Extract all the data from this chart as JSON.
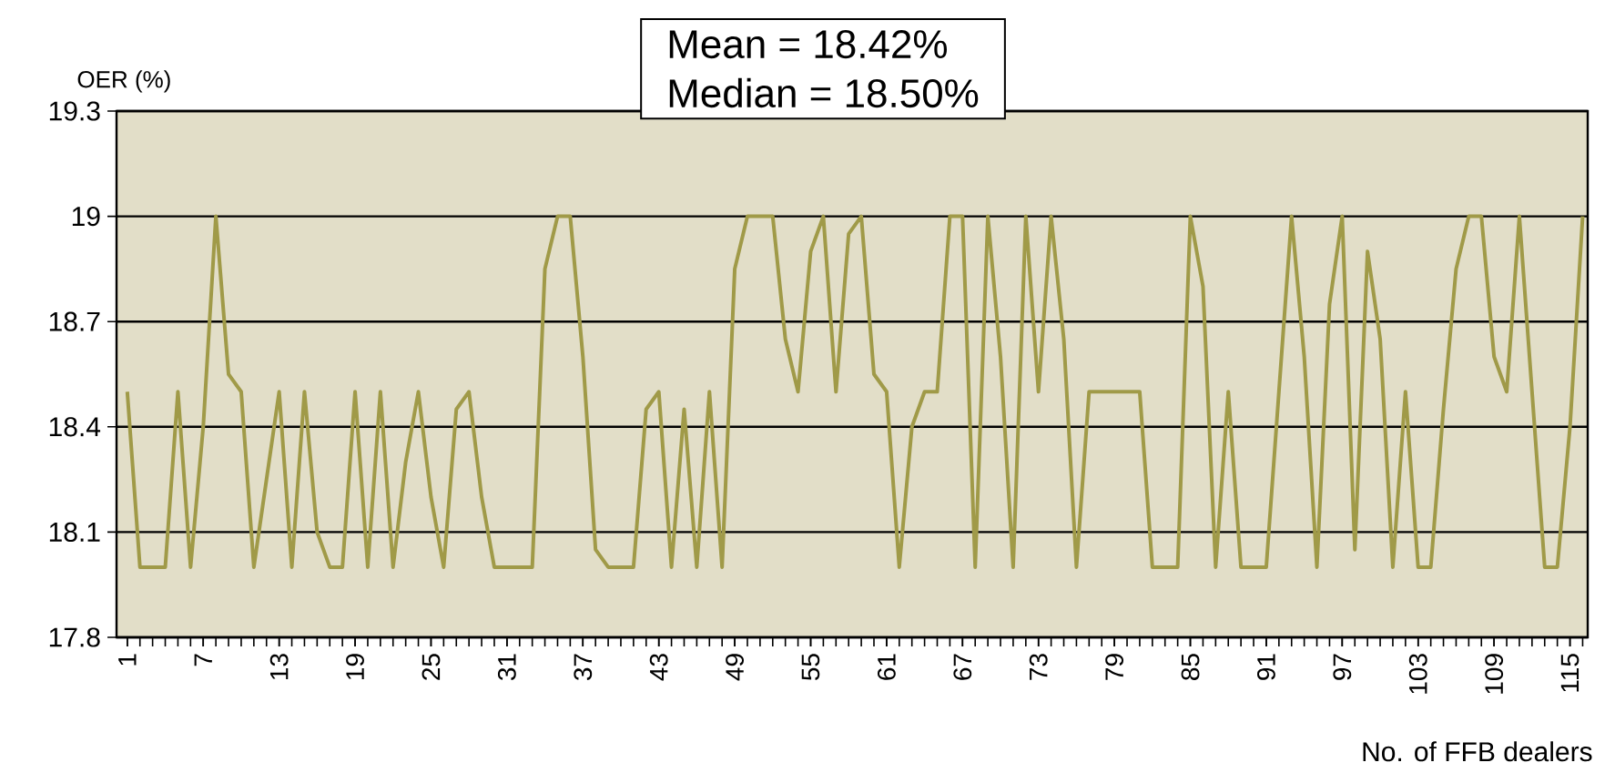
{
  "chart_data": {
    "type": "line",
    "ylabel": "OER (%)",
    "xlabel": "No. of FFB dealers",
    "annotations": [
      "Mean = 18.42%",
      "Median = 18.50%"
    ],
    "categories": [
      "1",
      null,
      null,
      null,
      null,
      null,
      "7",
      null,
      null,
      null,
      null,
      null,
      "13",
      null,
      null,
      null,
      null,
      null,
      "19",
      null,
      null,
      null,
      null,
      null,
      "25",
      null,
      null,
      null,
      null,
      null,
      "31",
      null,
      null,
      null,
      null,
      null,
      "37",
      null,
      null,
      null,
      null,
      null,
      "43",
      null,
      null,
      null,
      null,
      null,
      "49",
      null,
      null,
      null,
      null,
      null,
      "55",
      null,
      null,
      null,
      null,
      null,
      "61",
      null,
      null,
      null,
      null,
      null,
      "67",
      null,
      null,
      null,
      null,
      null,
      "73",
      null,
      null,
      null,
      null,
      null,
      "79",
      null,
      null,
      null,
      null,
      null,
      "85",
      null,
      null,
      null,
      null,
      null,
      "91",
      null,
      null,
      null,
      null,
      null,
      "97",
      null,
      null,
      null,
      null,
      null,
      "103",
      null,
      null,
      null,
      null,
      null,
      "109",
      null,
      null,
      null,
      null,
      null,
      "115",
      null
    ],
    "values": [
      18.5,
      18.0,
      18.0,
      18.0,
      18.5,
      18.0,
      18.4,
      19.0,
      18.55,
      18.5,
      18.0,
      18.25,
      18.5,
      18.0,
      18.5,
      18.1,
      18.0,
      18.0,
      18.5,
      18.0,
      18.5,
      18.0,
      18.3,
      18.5,
      18.2,
      18.0,
      18.45,
      18.5,
      18.2,
      18.0,
      18.0,
      18.0,
      18.0,
      18.85,
      19.0,
      19.0,
      18.6,
      18.05,
      18.0,
      18.0,
      18.0,
      18.45,
      18.5,
      18.0,
      18.45,
      18.0,
      18.5,
      18.0,
      18.85,
      19.0,
      19.0,
      19.0,
      18.65,
      18.5,
      18.9,
      19.0,
      18.5,
      18.95,
      19.0,
      18.55,
      18.5,
      18.0,
      18.4,
      18.5,
      18.5,
      19.0,
      19.0,
      18.0,
      19.0,
      18.6,
      18.0,
      19.0,
      18.5,
      19.0,
      18.65,
      18.0,
      18.5,
      18.5,
      18.5,
      18.5,
      18.5,
      18.0,
      18.0,
      18.0,
      19.0,
      18.8,
      18.0,
      18.5,
      18.0,
      18.0,
      18.0,
      18.5,
      19.0,
      18.6,
      18.0,
      18.75,
      19.0,
      18.05,
      18.9,
      18.65,
      18.0,
      18.5,
      18.0,
      18.0,
      18.45,
      18.85,
      19.0,
      19.0,
      18.6,
      18.5,
      19.0,
      18.5,
      18.0,
      18.0,
      18.4,
      19.0
    ],
    "color": "#a09a48",
    "ylim": [
      17.8,
      19.3
    ],
    "yticks": [
      17.8,
      18.1,
      18.4,
      18.7,
      19,
      19.3
    ],
    "grid": "y",
    "marker": "none",
    "line_style": "solid"
  }
}
